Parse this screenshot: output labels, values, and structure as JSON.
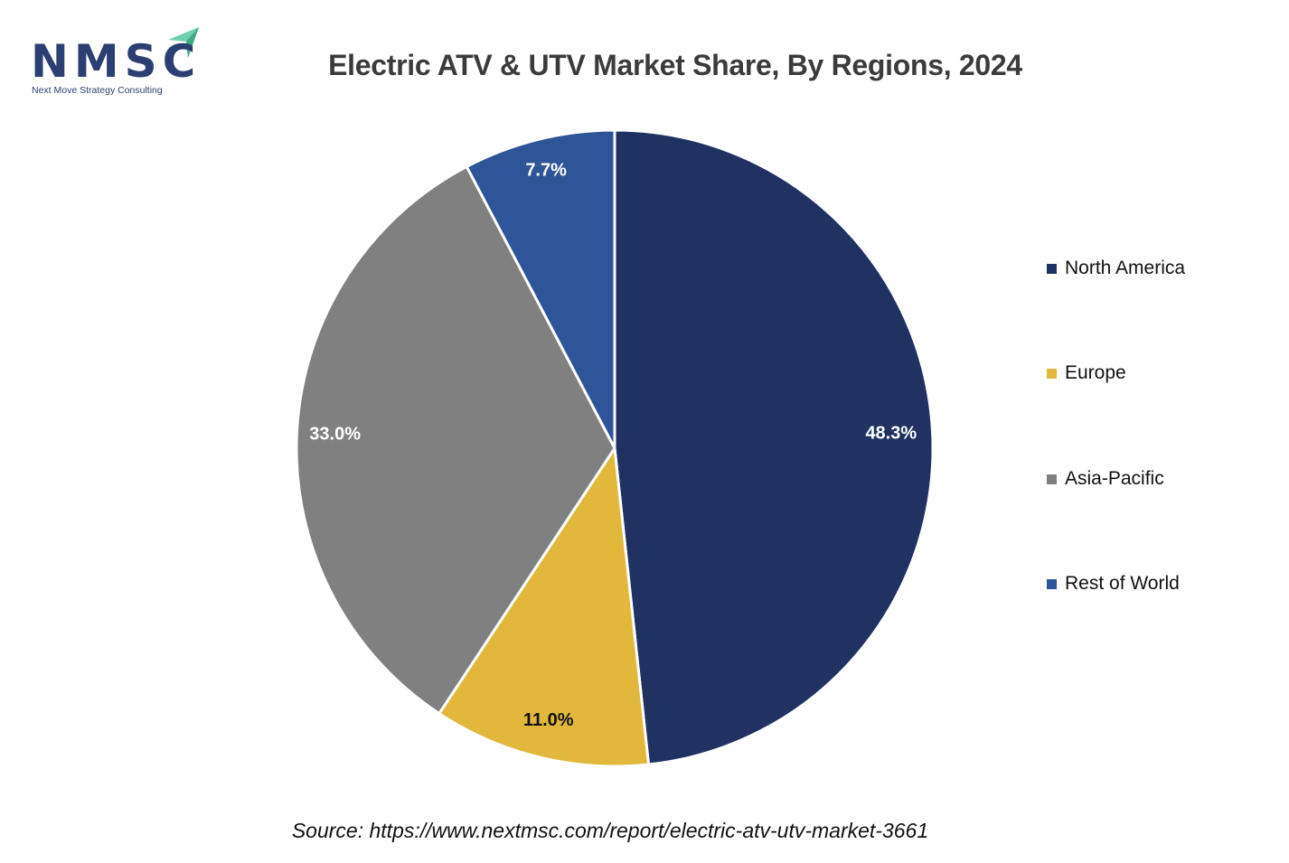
{
  "logo": {
    "letters": "NMSC",
    "subtitle": "Next Move Strategy Consulting",
    "brand_color": "#2b3f72",
    "accent_color": "#5fc4a0"
  },
  "source": "Source: https://www.nextmsc.com/report/electric-atv-utv-market-3661",
  "chart_data": {
    "type": "pie",
    "title": "Electric ATV & UTV Market Share, By Regions, 2024",
    "start_angle_deg": 0,
    "direction": "clockwise",
    "slices": [
      {
        "label": "North America",
        "value": 48.3,
        "data_label": "48.3%",
        "color": "#1f3261",
        "label_color": "#ffffff"
      },
      {
        "label": "Europe",
        "value": 11.0,
        "data_label": "11.0%",
        "color": "#e1b83c",
        "label_color": "#111111"
      },
      {
        "label": "Asia-Pacific",
        "value": 33.0,
        "data_label": "33.0%",
        "color": "#808080",
        "label_color": "#ffffff"
      },
      {
        "label": "Rest of World",
        "value": 7.7,
        "data_label": "7.7%",
        "color": "#2e5597",
        "label_color": "#ffffff"
      }
    ],
    "legend": {
      "position": "right",
      "entries": [
        "North America",
        "Europe",
        "Asia-Pacific",
        "Rest of World"
      ]
    }
  }
}
